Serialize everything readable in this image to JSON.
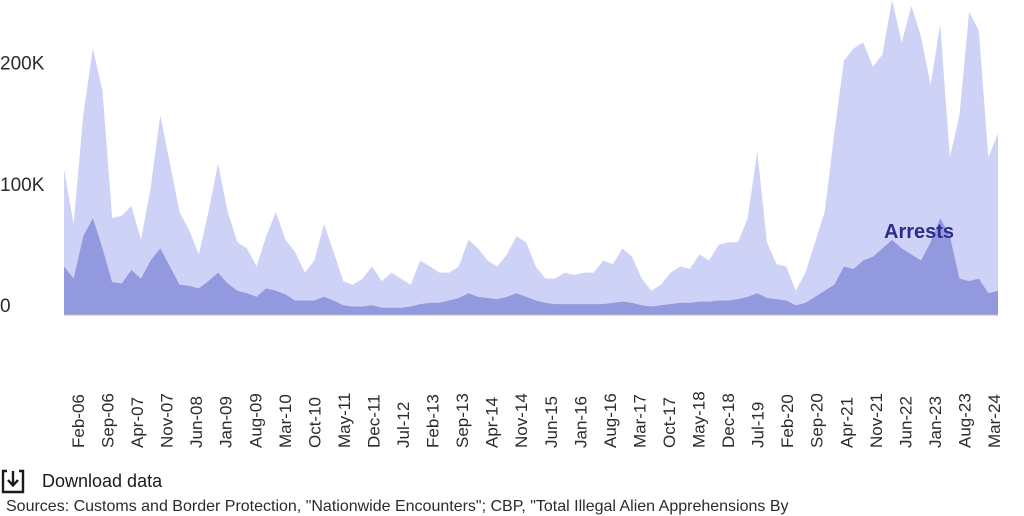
{
  "chart_data": {
    "type": "area",
    "y_tick_labels": [
      "0",
      "100K",
      "200K"
    ],
    "y_ticks": [
      0,
      100000,
      200000
    ],
    "ylim": [
      0,
      260000
    ],
    "x_tick_labels": [
      "Feb-06",
      "Sep-06",
      "Apr-07",
      "Nov-07",
      "Jun-08",
      "Jan-09",
      "Aug-09",
      "Mar-10",
      "Oct-10",
      "May-11",
      "Dec-11",
      "Jul-12",
      "Feb-13",
      "Sep-13",
      "Apr-14",
      "Nov-14",
      "Jun-15",
      "Jan-16",
      "Aug-16",
      "Mar-17",
      "Oct-17",
      "May-18",
      "Dec-18",
      "Jul-19",
      "Feb-20",
      "Sep-20",
      "Apr-21",
      "Nov-21",
      "Jun-22",
      "Jan-23",
      "Aug-23",
      "Mar-24"
    ],
    "x_range": [
      "Feb-06",
      "Mar-24"
    ],
    "annotation": "Arrests",
    "colors": {
      "background_series": "#cfd2f7",
      "front_series": "#9299df",
      "annotation": "#2a2d8a",
      "baseline": "#bdbdbd"
    },
    "series": [
      {
        "color": "#cfd2f7",
        "values": [
          120000,
          75000,
          165000,
          220000,
          185000,
          80000,
          82000,
          90000,
          62000,
          105000,
          165000,
          125000,
          85000,
          70000,
          50000,
          85000,
          125000,
          85000,
          60000,
          55000,
          40000,
          65000,
          85000,
          62000,
          52000,
          35000,
          45000,
          75000,
          52000,
          28000,
          25000,
          30000,
          40000,
          28000,
          35000,
          30000,
          25000,
          45000,
          40000,
          35000,
          35000,
          40000,
          62000,
          55000,
          45000,
          40000,
          50000,
          65000,
          60000,
          40000,
          30000,
          30000,
          35000,
          33000,
          35000,
          35000,
          45000,
          42000,
          55000,
          48000,
          30000,
          20000,
          25000,
          35000,
          40000,
          38000,
          50000,
          45000,
          58000,
          60000,
          60000,
          80000,
          135000,
          60000,
          42000,
          40000,
          20000,
          35000,
          60000,
          85000,
          150000,
          210000,
          220000,
          225000,
          205000,
          215000,
          260000,
          225000,
          255000,
          230000,
          190000,
          240000,
          130000,
          165000,
          250000,
          235000,
          130000,
          150000
        ]
      },
      {
        "color": "#9299df",
        "values": [
          40000,
          30000,
          65000,
          80000,
          55000,
          27000,
          26000,
          37000,
          30000,
          45000,
          55000,
          40000,
          25000,
          24000,
          22000,
          28000,
          35000,
          26000,
          20000,
          18000,
          15000,
          22000,
          20000,
          17000,
          12000,
          12000,
          12000,
          15000,
          12000,
          8000,
          7000,
          7000,
          8000,
          6000,
          6000,
          6000,
          7000,
          9000,
          10000,
          10000,
          12000,
          14000,
          18000,
          15000,
          14000,
          13000,
          15000,
          18000,
          15000,
          12000,
          10000,
          9000,
          9000,
          9000,
          9000,
          9000,
          9000,
          10000,
          11000,
          10000,
          8000,
          7000,
          8000,
          9000,
          10000,
          10000,
          11000,
          11000,
          12000,
          12000,
          13000,
          15000,
          18000,
          14000,
          13000,
          12000,
          8000,
          10000,
          15000,
          20000,
          25000,
          40000,
          38000,
          45000,
          48000,
          55000,
          62000,
          55000,
          50000,
          45000,
          60000,
          80000,
          65000,
          30000,
          28000,
          30000,
          18000,
          20000
        ]
      }
    ]
  },
  "download": {
    "label": "Download data",
    "icon": "download-icon"
  },
  "sources": {
    "text": "Sources: Customs and Border Protection, \"Nationwide Encounters\"; CBP, \"Total Illegal Alien Apprehensions By"
  }
}
